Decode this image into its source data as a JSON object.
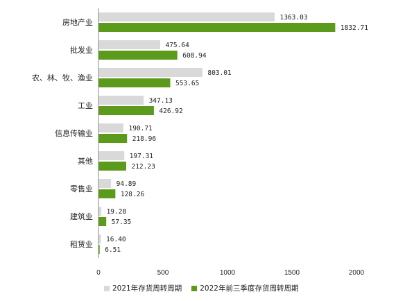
{
  "chart_data": {
    "type": "bar",
    "orientation": "horizontal",
    "categories": [
      "房地产业",
      "批发业",
      "农、林、牧、渔业",
      "工业",
      "信息传输业",
      "其他",
      "零售业",
      "建筑业",
      "租赁业"
    ],
    "series": [
      {
        "name": "2021年存货周转周期",
        "color": "#d9d9d9",
        "values": [
          1363.03,
          475.64,
          803.01,
          347.13,
          190.71,
          197.31,
          94.89,
          19.28,
          16.4
        ],
        "labels": [
          "1363.03",
          "475.64",
          "803.01",
          "347.13",
          "190.71",
          "197.31",
          "94.89",
          "19.28",
          "16.40"
        ]
      },
      {
        "name": "2022年前三季度存货周转周期",
        "color": "#5b9a1a",
        "values": [
          1832.71,
          608.94,
          553.65,
          426.92,
          218.96,
          212.23,
          128.26,
          57.35,
          6.51
        ],
        "labels": [
          "1832.71",
          "608.94",
          "553.65",
          "426.92",
          "218.96",
          "212.23",
          "128.26",
          "57.35",
          "6.51"
        ]
      }
    ],
    "xlim": [
      0,
      2000
    ],
    "xticks": [
      "0",
      "500",
      "1000",
      "1500",
      "2000"
    ],
    "legend_position": "bottom",
    "grid": false
  }
}
